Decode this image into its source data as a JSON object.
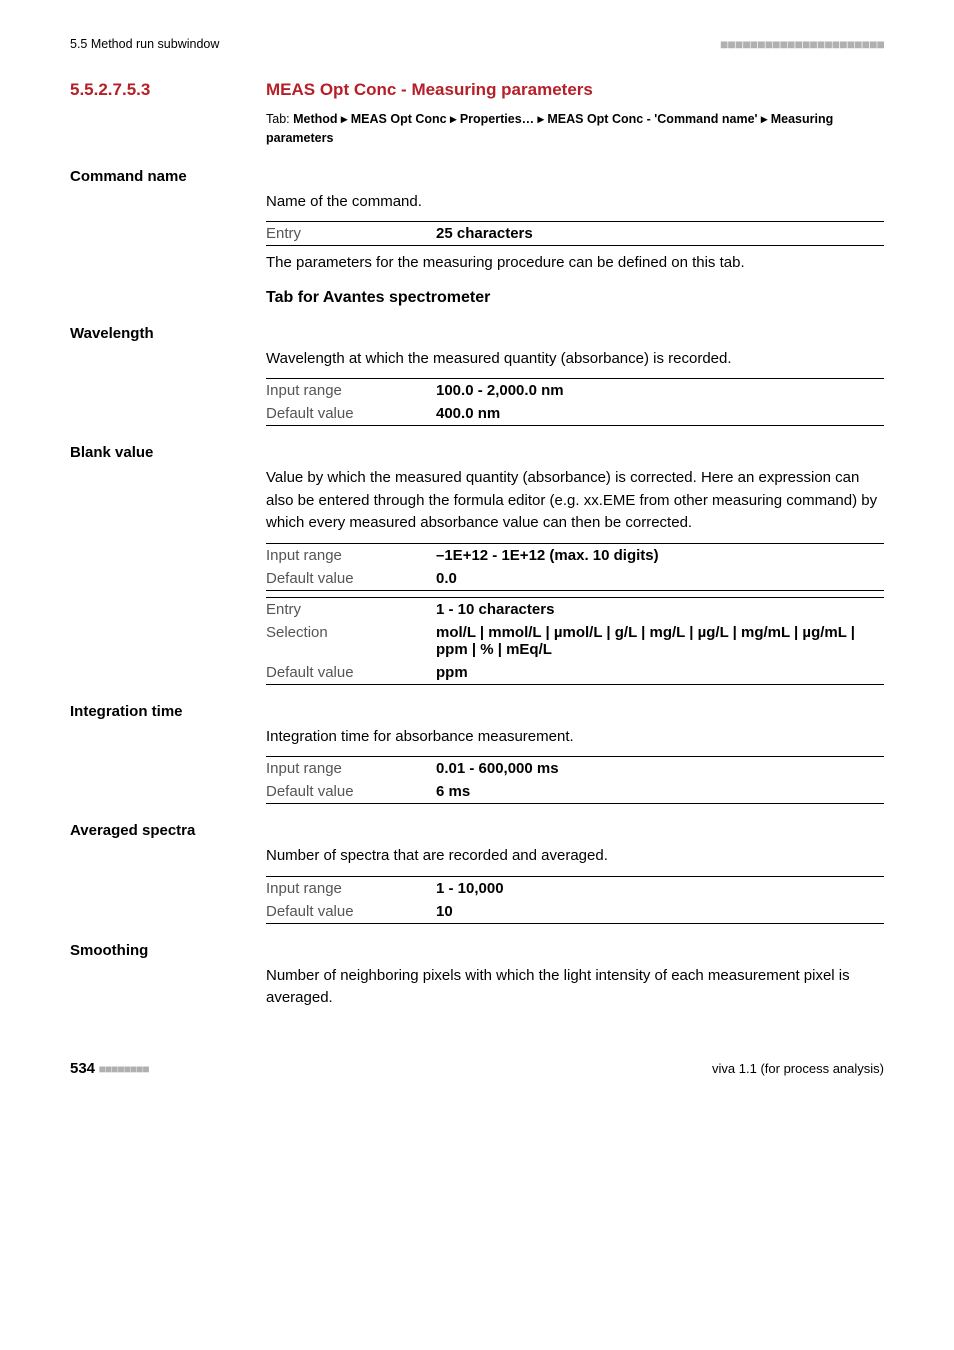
{
  "header": {
    "left": "5.5 Method run subwindow"
  },
  "section": {
    "number": "5.5.2.7.5.3",
    "title": "MEAS Opt Conc - Measuring parameters",
    "tab_label": "Tab: ",
    "tab_path_1": "Method ▸ MEAS Opt Conc ▸ Properties… ▸ MEAS Opt Conc - 'Command name' ▸ Measuring parameters"
  },
  "fields": {
    "command_name": {
      "label": "Command name",
      "desc": "Name of the command.",
      "entry_label": "Entry",
      "entry_value": "25 characters",
      "after_table": "The parameters for the measuring procedure can be defined on this tab."
    },
    "tab_sub": "Tab for Avantes spectrometer",
    "wavelength": {
      "label": "Wavelength",
      "desc": "Wavelength at which the measured quantity (absorbance) is recorded.",
      "range_label": "Input range",
      "range_value": "100.0 - 2,000.0 nm",
      "default_label": "Default value",
      "default_value": "400.0 nm"
    },
    "blank": {
      "label": "Blank value",
      "desc": "Value by which the measured quantity (absorbance) is corrected. Here an expression can also be entered through the formula editor (e.g. xx.EME from other measuring command) by which every measured absorbance value can then be corrected.",
      "range_label": "Input range",
      "range_value": "–1E+12 - 1E+12 (max. 10 digits)",
      "default_label": "Default value",
      "default_value": "0.0",
      "entry_label": "Entry",
      "entry_value": "1 - 10 characters",
      "selection_label": "Selection",
      "selection_value": "mol/L | mmol/L | µmol/L | g/L | mg/L | µg/L | mg/mL | µg/mL | ppm | % | mEq/L",
      "default2_label": "Default value",
      "default2_value": "ppm"
    },
    "integration": {
      "label": "Integration time",
      "desc": "Integration time for absorbance measurement.",
      "range_label": "Input range",
      "range_value": "0.01 - 600,000 ms",
      "default_label": "Default value",
      "default_value": "6 ms"
    },
    "averaged": {
      "label": "Averaged spectra",
      "desc": "Number of spectra that are recorded and averaged.",
      "range_label": "Input range",
      "range_value": "1 - 10,000",
      "default_label": "Default value",
      "default_value": "10"
    },
    "smoothing": {
      "label": "Smoothing",
      "desc": "Number of neighboring pixels with which the light intensity of each measurement pixel is averaged."
    }
  },
  "footer": {
    "page": "534",
    "right": "viva 1.1 (for process analysis)"
  }
}
